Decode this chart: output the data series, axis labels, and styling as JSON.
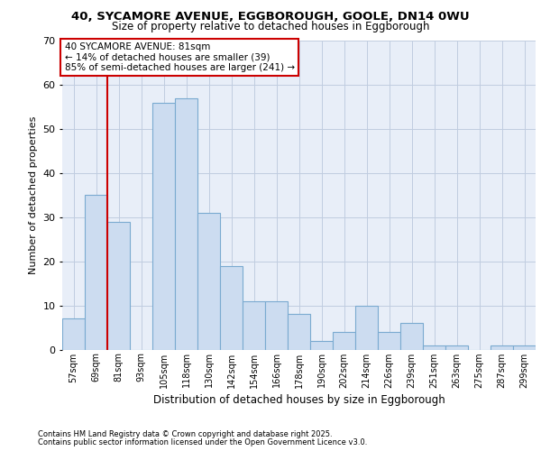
{
  "title_line1": "40, SYCAMORE AVENUE, EGGBOROUGH, GOOLE, DN14 0WU",
  "title_line2": "Size of property relative to detached houses in Eggborough",
  "xlabel": "Distribution of detached houses by size in Eggborough",
  "ylabel": "Number of detached properties",
  "categories": [
    "57sqm",
    "69sqm",
    "81sqm",
    "93sqm",
    "105sqm",
    "118sqm",
    "130sqm",
    "142sqm",
    "154sqm",
    "166sqm",
    "178sqm",
    "190sqm",
    "202sqm",
    "214sqm",
    "226sqm",
    "239sqm",
    "251sqm",
    "263sqm",
    "275sqm",
    "287sqm",
    "299sqm"
  ],
  "values": [
    7,
    35,
    29,
    0,
    56,
    57,
    31,
    19,
    11,
    11,
    8,
    2,
    4,
    10,
    4,
    6,
    1,
    1,
    0,
    1,
    1
  ],
  "bar_color": "#ccdcf0",
  "bar_edge_color": "#7aaad0",
  "ylim": [
    0,
    70
  ],
  "yticks": [
    0,
    10,
    20,
    30,
    40,
    50,
    60,
    70
  ],
  "red_line_index": 2,
  "annotation_line1": "40 SYCAMORE AVENUE: 81sqm",
  "annotation_line2": "← 14% of detached houses are smaller (39)",
  "annotation_line3": "85% of semi-detached houses are larger (241) →",
  "footnote1": "Contains HM Land Registry data © Crown copyright and database right 2025.",
  "footnote2": "Contains public sector information licensed under the Open Government Licence v3.0.",
  "bg_color": "#e8eef8",
  "grid_color": "#c0cce0",
  "fig_bg": "#ffffff"
}
